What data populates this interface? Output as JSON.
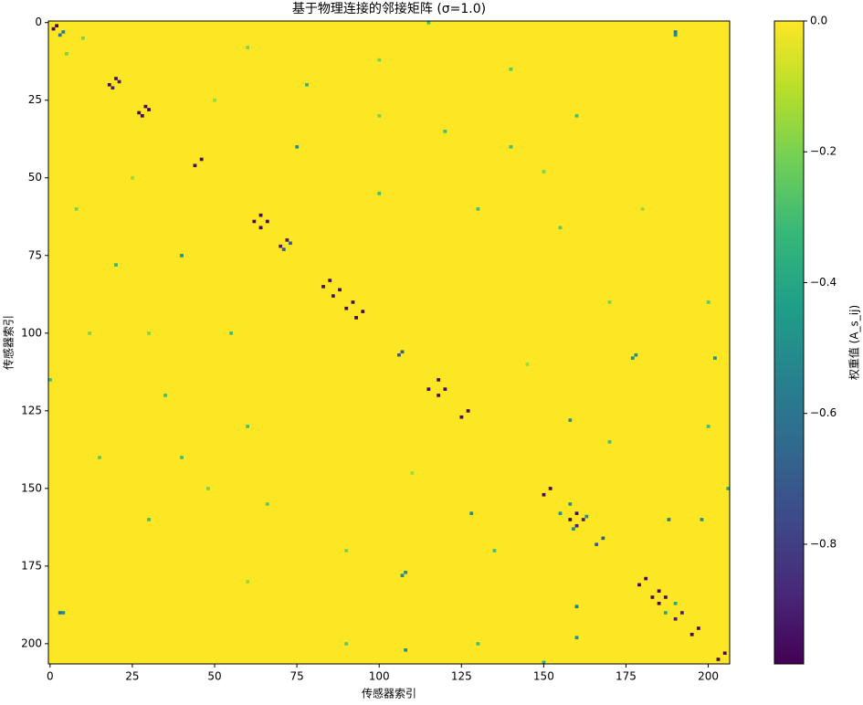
{
  "chart_data": {
    "type": "heatmap",
    "title": "基于物理连接的邻接矩阵 (σ=1.0)",
    "xlabel": "传感器索引",
    "ylabel": "传感器索引",
    "colorbar_label": "权重值 (A_s_ij)",
    "xlim": [
      -0.5,
      206.5
    ],
    "ylim": [
      206.5,
      -0.5
    ],
    "xticks": [
      0,
      25,
      50,
      75,
      100,
      125,
      150,
      175,
      200
    ],
    "yticks": [
      0,
      25,
      50,
      75,
      100,
      125,
      150,
      175,
      200
    ],
    "clim": [
      -0.983,
      0
    ],
    "cticks": [
      {
        "value": 0,
        "label": "0.0"
      },
      {
        "value": -0.2,
        "label": "−0.2"
      },
      {
        "value": -0.4,
        "label": "−0.4"
      },
      {
        "value": -0.6,
        "label": "−0.6"
      },
      {
        "value": -0.8,
        "label": "−0.8"
      }
    ],
    "colormap": [
      "#440154",
      "#482878",
      "#3e4989",
      "#31688e",
      "#26828e",
      "#1f9e89",
      "#35b779",
      "#6ece58",
      "#b5de2b",
      "#fde725"
    ],
    "fill_value": 0,
    "symmetric": true,
    "cells": [
      [
        1,
        2,
        -0.97
      ],
      [
        3,
        4,
        -0.6
      ],
      [
        20,
        18,
        -0.95
      ],
      [
        19,
        21,
        -0.9
      ],
      [
        27,
        29,
        -0.95
      ],
      [
        28,
        30,
        -0.97
      ],
      [
        44,
        46,
        -0.95
      ],
      [
        62,
        64,
        -0.96
      ],
      [
        64,
        66,
        -0.96
      ],
      [
        70,
        72,
        -0.9
      ],
      [
        71,
        73,
        -0.7
      ],
      [
        85,
        83,
        -0.95
      ],
      [
        88,
        86,
        -0.95
      ],
      [
        92,
        90,
        -0.95
      ],
      [
        95,
        93,
        -0.97
      ],
      [
        107,
        106,
        -0.7
      ],
      [
        115,
        118,
        -0.96
      ],
      [
        118,
        120,
        -0.95
      ],
      [
        127,
        125,
        -0.96
      ],
      [
        152,
        150,
        -0.96
      ],
      [
        160,
        158,
        -0.95
      ],
      [
        162,
        160,
        -0.9
      ],
      [
        159,
        163,
        -0.5
      ],
      [
        155,
        158,
        -0.5
      ],
      [
        168,
        166,
        -0.7
      ],
      [
        181,
        179,
        -0.96
      ],
      [
        185,
        183,
        -0.96
      ],
      [
        187,
        185,
        -0.96
      ],
      [
        192,
        190,
        -0.9
      ],
      [
        195,
        197,
        -0.96
      ],
      [
        205,
        203,
        -0.96
      ],
      [
        10,
        5,
        -0.2
      ],
      [
        25,
        50,
        -0.15
      ],
      [
        40,
        75,
        -0.5
      ],
      [
        55,
        100,
        -0.3
      ],
      [
        60,
        180,
        -0.15
      ],
      [
        100,
        30,
        -0.2
      ],
      [
        130,
        60,
        -0.3
      ],
      [
        145,
        110,
        -0.15
      ],
      [
        160,
        30,
        -0.3
      ],
      [
        178,
        107,
        -0.5
      ],
      [
        190,
        4,
        -0.5
      ],
      [
        190,
        187,
        -0.4
      ],
      [
        160,
        188,
        -0.6
      ],
      [
        108,
        177,
        -0.5
      ],
      [
        108,
        202,
        -0.5
      ],
      [
        3,
        190,
        -0.6
      ],
      [
        150,
        206,
        -0.4
      ],
      [
        128,
        158,
        -0.5
      ],
      [
        198,
        160,
        -0.5
      ],
      [
        115,
        0,
        -0.3
      ],
      [
        8,
        60,
        -0.2
      ],
      [
        15,
        140,
        -0.25
      ],
      [
        35,
        120,
        -0.3
      ],
      [
        48,
        150,
        -0.2
      ],
      [
        78,
        20,
        -0.35
      ],
      [
        90,
        200,
        -0.25
      ],
      [
        135,
        170,
        -0.3
      ],
      [
        170,
        90,
        -0.2
      ],
      [
        200,
        130,
        -0.3
      ],
      [
        12,
        100,
        -0.2
      ],
      [
        66,
        155,
        -0.25
      ],
      [
        140,
        40,
        -0.3
      ]
    ]
  }
}
